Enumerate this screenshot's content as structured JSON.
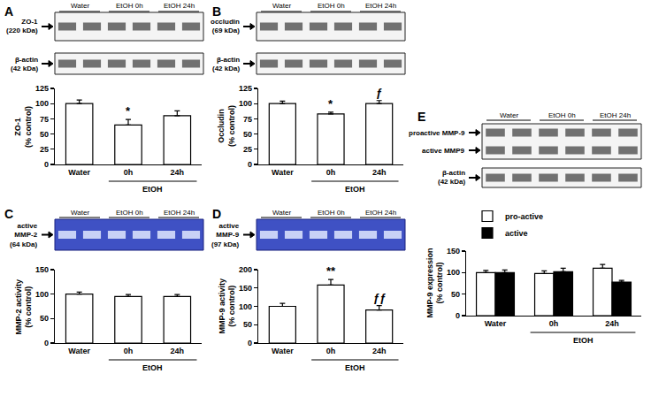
{
  "chart_data": [
    {
      "panel": "A",
      "type": "bar",
      "blot": {
        "kind": "western",
        "lanes": [
          "Water",
          "EtOH 0h",
          "EtOH 24h"
        ],
        "rows": [
          {
            "bands": [
              {
                "lines": [
                  "ZO-1",
                  "(220 kDa)"
                ]
              }
            ]
          },
          {
            "bands": [
              {
                "lines": [
                  "β-actin",
                  "(42 kDa)"
                ]
              }
            ]
          }
        ]
      },
      "categories": [
        "Water",
        "0h",
        "24h"
      ],
      "group": {
        "label": "EtOH",
        "categories": [
          "0h",
          "24h"
        ]
      },
      "ylabel": [
        "ZO-1",
        "(% control)"
      ],
      "values": [
        100,
        65,
        80
      ],
      "errors": [
        6,
        9,
        8
      ],
      "color": "#ffffff",
      "ylim": [
        0,
        125
      ],
      "yticks": [
        0,
        25,
        50,
        75,
        100,
        125
      ],
      "annotations": [
        {
          "category": "0h",
          "text": "*"
        }
      ]
    },
    {
      "panel": "B",
      "type": "bar",
      "blot": {
        "kind": "western",
        "lanes": [
          "Water",
          "EtOH 0h",
          "EtOH 24h"
        ],
        "rows": [
          {
            "bands": [
              {
                "lines": [
                  "occludin",
                  "(69 kDa)"
                ]
              }
            ]
          },
          {
            "bands": [
              {
                "lines": [
                  "β-actin",
                  "(42 kDa)"
                ]
              }
            ]
          }
        ]
      },
      "categories": [
        "Water",
        "0h",
        "24h"
      ],
      "group": {
        "label": "EtOH",
        "categories": [
          "0h",
          "24h"
        ]
      },
      "ylabel": [
        "Occludin",
        "(% control)"
      ],
      "values": [
        100,
        83,
        100
      ],
      "errors": [
        4,
        3,
        5
      ],
      "color": "#ffffff",
      "ylim": [
        0,
        125
      ],
      "yticks": [
        0,
        25,
        50,
        75,
        100,
        125
      ],
      "annotations": [
        {
          "category": "0h",
          "text": "*"
        },
        {
          "category": "24h",
          "text": "ƒ"
        }
      ]
    },
    {
      "panel": "C",
      "type": "bar",
      "blot": {
        "kind": "zymogram",
        "lanes": [
          "Water",
          "EtOH 0h",
          "EtOH 24h"
        ],
        "rows": [
          {
            "bands": [
              {
                "lines": [
                  "active",
                  "MMP-2",
                  "(64 kDa)"
                ]
              }
            ]
          }
        ]
      },
      "categories": [
        "Water",
        "0h",
        "24h"
      ],
      "group": {
        "label": "EtOH",
        "categories": [
          "0h",
          "24h"
        ]
      },
      "ylabel": [
        "MMP-2 activity",
        "(% control)"
      ],
      "values": [
        100,
        95,
        95
      ],
      "errors": [
        4,
        4,
        4
      ],
      "color": "#ffffff",
      "ylim": [
        0,
        150
      ],
      "yticks": [
        0,
        50,
        100,
        150
      ]
    },
    {
      "panel": "D",
      "type": "bar",
      "blot": {
        "kind": "zymogram",
        "lanes": [
          "Water",
          "EtOH 0h",
          "EtOH 24h"
        ],
        "rows": [
          {
            "bands": [
              {
                "lines": [
                  "active",
                  "MMP-9",
                  "(97 kDa)"
                ]
              }
            ]
          }
        ]
      },
      "categories": [
        "Water",
        "0h",
        "24h"
      ],
      "group": {
        "label": "EtOH",
        "categories": [
          "0h",
          "24h"
        ]
      },
      "ylabel": [
        "MMP-9 activity",
        "(% control)"
      ],
      "values": [
        100,
        158,
        90
      ],
      "errors": [
        8,
        15,
        12
      ],
      "color": "#ffffff",
      "ylim": [
        0,
        200
      ],
      "yticks": [
        0,
        50,
        100,
        150,
        200
      ],
      "annotations": [
        {
          "category": "0h",
          "text": "**"
        },
        {
          "category": "24h",
          "text": "ƒƒ"
        }
      ]
    },
    {
      "panel": "E",
      "type": "bar",
      "blot": {
        "kind": "western",
        "lanes": [
          "Water",
          "EtOH 0h",
          "EtOH 24h"
        ],
        "rows": [
          {
            "bands": [
              {
                "lines": [
                  "proactive MMP-9"
                ]
              },
              {
                "lines": [
                  "active MMP9"
                ]
              }
            ]
          },
          {
            "bands": [
              {
                "lines": [
                  "β-actin",
                  "(42 kDa)"
                ]
              }
            ]
          }
        ]
      },
      "categories": [
        "Water",
        "0h",
        "24h"
      ],
      "group": {
        "label": "EtOH",
        "categories": [
          "0h",
          "24h"
        ]
      },
      "ylabel": [
        "MMP-9 expression",
        "(% control)"
      ],
      "series": [
        {
          "name": "pro-active",
          "color": "#ffffff",
          "values": [
            100,
            98,
            110
          ],
          "errors": [
            5,
            6,
            9
          ]
        },
        {
          "name": "active",
          "color": "#000000",
          "values": [
            100,
            102,
            78
          ],
          "errors": [
            6,
            8,
            4
          ]
        }
      ],
      "ylim": [
        0,
        150
      ],
      "yticks": [
        0,
        50,
        100,
        150
      ],
      "legend": "upper left"
    }
  ]
}
